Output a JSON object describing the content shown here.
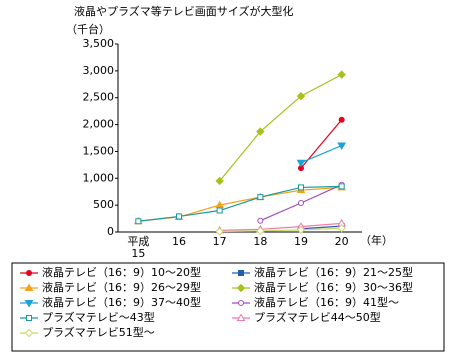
{
  "chart_data": {
    "type": "line",
    "title": "液晶やプラズマ等テレビ画面サイズが大型化",
    "y_label": "（千台）",
    "x_label": "（年）",
    "categories": [
      "平成15",
      "16",
      "17",
      "18",
      "19",
      "20"
    ],
    "ylim": [
      0,
      3500
    ],
    "yticks": [
      0,
      500,
      {
        "value": 1000,
        "label": "1,000"
      },
      {
        "value": 1500,
        "label": "1,500"
      },
      {
        "value": 2000,
        "label": "2,000"
      },
      {
        "value": 2500,
        "label": "2,500"
      },
      {
        "value": 3000,
        "label": "3,000"
      },
      {
        "value": 3500,
        "label": "3,500"
      }
    ],
    "grid": false,
    "series": [
      {
        "name": "液晶テレビ（16：9）10～20型",
        "color": "#e8001c",
        "marker": "circle",
        "hollow": false,
        "values": [
          null,
          null,
          null,
          null,
          1190,
          2090
        ]
      },
      {
        "name": "液晶テレビ（16：9）21～25型",
        "color": "#1f5fb0",
        "marker": "square",
        "hollow": false,
        "values": [
          null,
          null,
          null,
          null,
          60,
          110
        ]
      },
      {
        "name": "液晶テレビ（16：9）26～29型",
        "color": "#f5a21b",
        "marker": "triangle",
        "hollow": false,
        "values": [
          200,
          280,
          500,
          650,
          780,
          830
        ]
      },
      {
        "name": "液晶テレビ（16：9）30～36型",
        "color": "#a5c21b",
        "marker": "diamond",
        "hollow": false,
        "values": [
          null,
          null,
          950,
          1870,
          2530,
          2930
        ]
      },
      {
        "name": "液晶テレビ（16：9）37～40型",
        "color": "#1ba3d8",
        "marker": "triangle-down",
        "hollow": false,
        "values": [
          null,
          null,
          null,
          null,
          1290,
          1610
        ]
      },
      {
        "name": "液晶テレビ（16：9）41型～",
        "color": "#a04cbf",
        "marker": "circle",
        "hollow": true,
        "values": [
          null,
          null,
          null,
          210,
          540,
          880
        ]
      },
      {
        "name": "プラズマテレビ～43型",
        "color": "#1c9a9a",
        "marker": "square",
        "hollow": true,
        "values": [
          200,
          290,
          400,
          650,
          830,
          850
        ]
      },
      {
        "name": "プラズマテレビ44～50型",
        "color": "#f07aa8",
        "marker": "triangle",
        "hollow": true,
        "values": [
          null,
          null,
          30,
          50,
          100,
          160
        ]
      },
      {
        "name": "プラズマテレビ51型～",
        "color": "#c8d86a",
        "marker": "diamond",
        "hollow": true,
        "values": [
          null,
          null,
          10,
          20,
          40,
          70
        ]
      }
    ]
  }
}
